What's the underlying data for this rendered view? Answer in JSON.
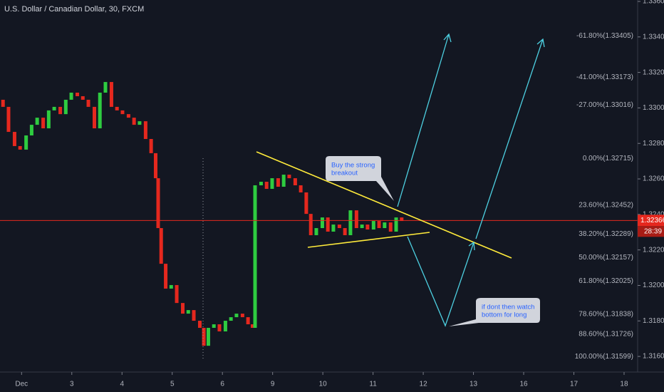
{
  "chart_data": {
    "type": "candlestick",
    "title": "U.S. Dollar / Canadian Dollar, 30, FXCM",
    "up_color": "#2ecc40",
    "down_color": "#e5281e",
    "xlim": [
      -0.43,
      12.27
    ],
    "xticks": [
      {
        "value": 0,
        "label": "Dec"
      },
      {
        "value": 1,
        "label": "3"
      },
      {
        "value": 2,
        "label": "4"
      },
      {
        "value": 3,
        "label": "5"
      },
      {
        "value": 4,
        "label": "6"
      },
      {
        "value": 5,
        "label": "9"
      },
      {
        "value": 6,
        "label": "10"
      },
      {
        "value": 7,
        "label": "11"
      },
      {
        "value": 8,
        "label": "12"
      },
      {
        "value": 9,
        "label": "13"
      },
      {
        "value": 10,
        "label": "16"
      },
      {
        "value": 11,
        "label": "17"
      },
      {
        "value": 12,
        "label": "18"
      }
    ],
    "ylim": [
      1.31512,
      1.33608
    ],
    "yticks": [
      {
        "value": 1.336,
        "label": "1.33600"
      },
      {
        "value": 1.334,
        "label": "1.33400"
      },
      {
        "value": 1.332,
        "label": "1.33200"
      },
      {
        "value": 1.33,
        "label": "1.33000"
      },
      {
        "value": 1.328,
        "label": "1.32800"
      },
      {
        "value": 1.326,
        "label": "1.32600"
      },
      {
        "value": 1.324,
        "label": "1.32400"
      },
      {
        "value": 1.322,
        "label": "1.32200"
      },
      {
        "value": 1.32,
        "label": "1.32000"
      },
      {
        "value": 1.318,
        "label": "1.31800"
      },
      {
        "value": 1.316,
        "label": "1.31600"
      }
    ],
    "x": [
      -0.37,
      -0.26,
      -0.14,
      -0.03,
      0.09,
      0.2,
      0.31,
      0.43,
      0.54,
      0.65,
      0.77,
      0.88,
      0.99,
      1.11,
      1.22,
      1.33,
      1.45,
      1.56,
      1.67,
      1.79,
      1.9,
      2.01,
      2.13,
      2.24,
      2.35,
      2.47,
      2.58,
      2.67,
      2.72,
      2.78,
      2.87,
      2.98,
      3.09,
      3.21,
      3.32,
      3.43,
      3.55,
      3.63,
      3.72,
      3.83,
      3.94,
      4.06,
      4.17,
      4.28,
      4.4,
      4.51,
      4.6,
      4.65,
      4.77,
      4.88,
      4.99,
      5.11,
      5.22,
      5.33,
      5.45,
      5.56,
      5.67,
      5.76,
      5.87,
      5.99,
      6.1,
      6.21,
      6.33,
      6.44,
      6.55,
      6.67,
      6.78,
      6.89,
      7.01,
      7.12,
      7.23,
      7.35,
      7.46,
      7.57
    ],
    "open": [
      1.33046,
      1.33006,
      1.32865,
      1.32785,
      1.32765,
      1.32845,
      1.32905,
      1.32945,
      1.32885,
      1.32986,
      1.33006,
      1.32965,
      1.33046,
      1.33086,
      1.33066,
      1.33046,
      1.33006,
      1.32885,
      1.33086,
      1.33146,
      1.33006,
      1.32986,
      1.32965,
      1.32945,
      1.32905,
      1.32925,
      1.32825,
      1.32745,
      1.32604,
      1.32323,
      1.32122,
      1.31982,
      1.32002,
      1.31901,
      1.31841,
      1.31861,
      1.31801,
      1.31761,
      1.3166,
      1.31761,
      1.31781,
      1.31741,
      1.31801,
      1.31821,
      1.31841,
      1.31821,
      1.31781,
      1.31761,
      1.32564,
      1.32584,
      1.32544,
      1.32604,
      1.32556,
      1.32624,
      1.32604,
      1.32564,
      1.32524,
      1.32403,
      1.32283,
      1.32323,
      1.32383,
      1.32303,
      1.32343,
      1.32323,
      1.32283,
      1.32423,
      1.32323,
      1.32343,
      1.32315,
      1.32363,
      1.32323,
      1.32355,
      1.32303,
      1.32383
    ],
    "close": [
      1.33006,
      1.32865,
      1.32785,
      1.32765,
      1.32845,
      1.32905,
      1.32945,
      1.32885,
      1.32986,
      1.33006,
      1.32965,
      1.33046,
      1.33086,
      1.33066,
      1.33046,
      1.33006,
      1.32885,
      1.33086,
      1.33146,
      1.33006,
      1.32986,
      1.32965,
      1.32945,
      1.32905,
      1.32925,
      1.32825,
      1.32745,
      1.32604,
      1.32323,
      1.32122,
      1.31982,
      1.32002,
      1.31901,
      1.31841,
      1.31861,
      1.31801,
      1.31761,
      1.3166,
      1.31761,
      1.31781,
      1.31741,
      1.31801,
      1.31821,
      1.31841,
      1.31821,
      1.31781,
      1.31761,
      1.32564,
      1.32584,
      1.32544,
      1.32604,
      1.32556,
      1.32624,
      1.32604,
      1.32564,
      1.32524,
      1.32403,
      1.32283,
      1.32323,
      1.32383,
      1.32303,
      1.32343,
      1.32323,
      1.32283,
      1.32423,
      1.32323,
      1.32343,
      1.32315,
      1.32363,
      1.32323,
      1.32355,
      1.32303,
      1.32383,
      1.32363
    ],
    "fib_levels": [
      {
        "value": 1.33405,
        "label": "-61.80%(1.33405)"
      },
      {
        "value": 1.33173,
        "label": "-41.00%(1.33173)"
      },
      {
        "value": 1.33016,
        "label": "-27.00%(1.33016)"
      },
      {
        "value": 1.32715,
        "label": "0.00%(1.32715)"
      },
      {
        "value": 1.32452,
        "label": "23.60%(1.32452)"
      },
      {
        "value": 1.32289,
        "label": "38.20%(1.32289)"
      },
      {
        "value": 1.32157,
        "label": "50.00%(1.32157)"
      },
      {
        "value": 1.32025,
        "label": "61.80%(1.32025)"
      },
      {
        "value": 1.31838,
        "label": "78.60%(1.31838)"
      },
      {
        "value": 1.31726,
        "label": "88.60%(1.31726)"
      },
      {
        "value": 1.31599,
        "label": "100.00%(1.31599)"
      }
    ],
    "current_price": {
      "value": 1.32366,
      "label": "1.32366"
    },
    "countdown": "28:39",
    "annotations": [
      {
        "lines": [
          "Buy the strong",
          "breakout"
        ]
      },
      {
        "lines": [
          "if dont then watch",
          "bottom for long"
        ]
      }
    ],
    "grid": false
  }
}
